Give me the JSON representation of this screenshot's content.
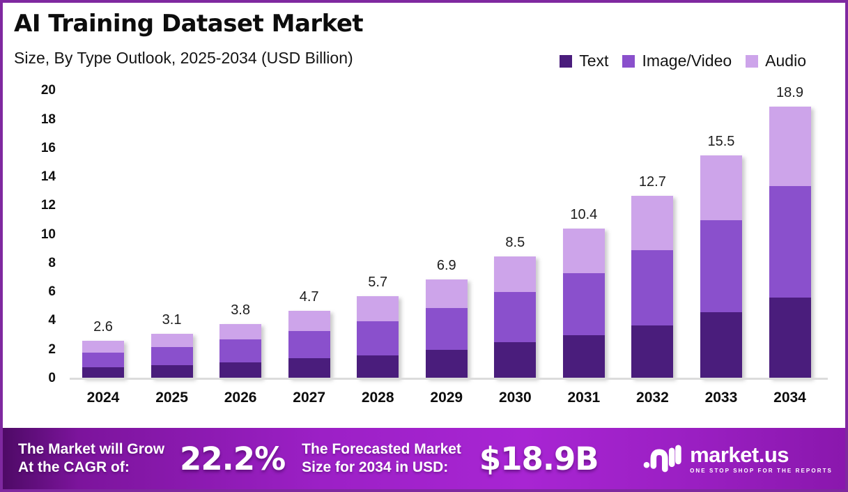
{
  "chart_data": {
    "type": "bar",
    "stacked": true,
    "title": "AI Training Dataset Market",
    "subtitle": "Size, By Type Outlook, 2025-2034 (USD Billion)",
    "categories": [
      "2024",
      "2025",
      "2026",
      "2027",
      "2028",
      "2029",
      "2030",
      "2031",
      "2032",
      "2033",
      "2034"
    ],
    "series": [
      {
        "name": "Text",
        "color": "#4a1d7c",
        "values": [
          0.8,
          0.9,
          1.1,
          1.4,
          1.6,
          2.0,
          2.5,
          3.0,
          3.7,
          4.6,
          5.6
        ]
      },
      {
        "name": "Image/Video",
        "color": "#8a50cc",
        "values": [
          1.0,
          1.3,
          1.6,
          1.9,
          2.4,
          2.9,
          3.5,
          4.3,
          5.2,
          6.4,
          7.8
        ]
      },
      {
        "name": "Audio",
        "color": "#cda4ea",
        "values": [
          0.8,
          0.9,
          1.1,
          1.4,
          1.7,
          2.0,
          2.5,
          3.1,
          3.8,
          4.5,
          5.5
        ]
      }
    ],
    "totals": [
      "2.6",
      "3.1",
      "3.8",
      "4.7",
      "5.7",
      "6.9",
      "8.5",
      "10.4",
      "12.7",
      "15.5",
      "18.9"
    ],
    "ylabel": "",
    "xlabel": "",
    "ylim": [
      0,
      20
    ],
    "yticks": [
      0,
      2,
      4,
      6,
      8,
      10,
      12,
      14,
      16,
      18,
      20
    ],
    "grid": false,
    "legend_position": "top-right"
  },
  "footer": {
    "cagr_label_line1": "The Market will Grow",
    "cagr_label_line2": "At the CAGR of:",
    "cagr_value": "22.2%",
    "forecast_label_line1": "The Forecasted Market",
    "forecast_label_line2": "Size for 2034 in USD:",
    "forecast_value": "$18.9B",
    "brand_name": "market.us",
    "brand_tagline": "ONE STOP SHOP FOR THE REPORTS"
  },
  "colors": {
    "frame_border": "#7f28a0",
    "axis_line": "#dcdcdc",
    "footer_purple": "#9c20c6"
  }
}
